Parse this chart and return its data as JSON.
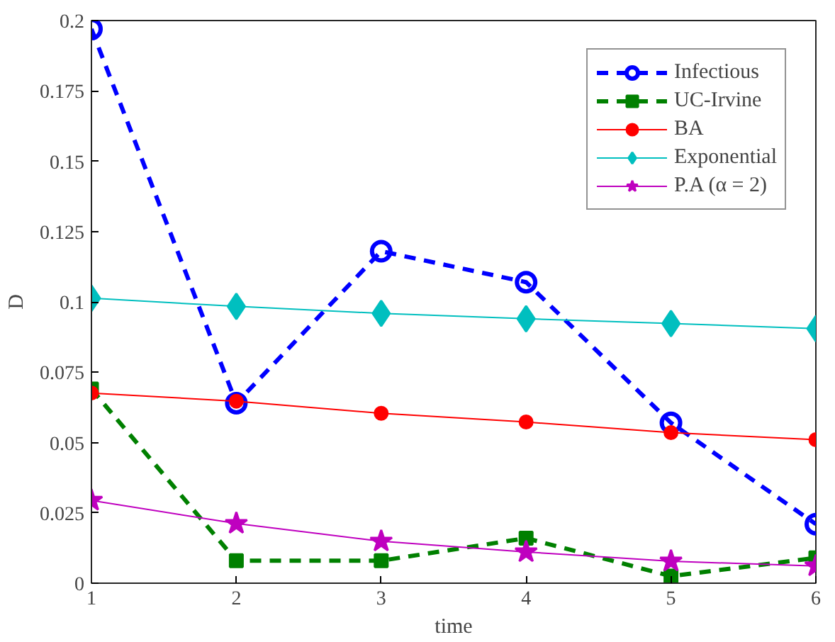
{
  "chart_data": {
    "type": "line",
    "xlabel": "time",
    "ylabel": "D",
    "x": [
      1,
      2,
      3,
      4,
      5,
      6
    ],
    "xlim": [
      1,
      6
    ],
    "xticks": [
      1,
      2,
      3,
      4,
      5,
      6
    ],
    "ylim": [
      0,
      0.2
    ],
    "yticks": [
      0,
      0.025,
      0.05,
      0.075,
      0.1,
      0.125,
      0.15,
      0.175,
      0.2
    ],
    "grid": false,
    "legend": "top right",
    "series": [
      {
        "name": "Infectious",
        "color": "#0000ff",
        "marker": "circle",
        "line_style": "dashed",
        "values": [
          0.197,
          0.064,
          0.118,
          0.107,
          0.057,
          0.021
        ]
      },
      {
        "name": "UC-Irvine",
        "color": "#008000",
        "marker": "square",
        "line_style": "dashed",
        "values": [
          0.069,
          0.008,
          0.008,
          0.016,
          0.0025,
          0.009
        ]
      },
      {
        "name": "BA",
        "color": "#ff0000",
        "marker": "circle",
        "line_style": "solid",
        "values": [
          0.0676,
          0.0647,
          0.0604,
          0.0573,
          0.0535,
          0.051
        ]
      },
      {
        "name": "Exponential",
        "color": "#00bfbf",
        "marker": "diamond",
        "line_style": "solid",
        "values": [
          0.1013,
          0.0984,
          0.0959,
          0.094,
          0.0923,
          0.0905
        ]
      },
      {
        "name": "P.A (α = 2)",
        "color": "#bf00bf",
        "marker": "star",
        "line_style": "solid",
        "values": [
          0.0294,
          0.0212,
          0.0149,
          0.0111,
          0.0078,
          0.0061
        ]
      }
    ]
  }
}
